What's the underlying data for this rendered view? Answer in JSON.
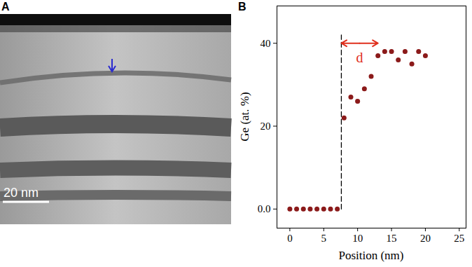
{
  "image_panel": {
    "panel_label": "A",
    "scale_bar": "20 nm"
  },
  "chart_data": {
    "type": "scatter",
    "panel_label": "B",
    "x_label": "Position (nm)",
    "y_label": "Ge (at. %)",
    "x": [
      0,
      1,
      2,
      3,
      4,
      5,
      6,
      7,
      8,
      9,
      10,
      11,
      12,
      13,
      14,
      15,
      16,
      17,
      18,
      19,
      20
    ],
    "values": [
      0,
      0,
      0,
      0,
      0,
      0,
      0,
      0,
      22,
      27,
      26,
      29,
      32,
      37,
      38,
      38,
      36,
      38,
      35,
      38,
      37
    ],
    "color": "#8b1a1a",
    "marker": "circle",
    "xlim": [
      -1.9,
      26
    ],
    "ylim": [
      -4.6,
      49
    ],
    "xticks": [
      0,
      5,
      10,
      15,
      20,
      25
    ],
    "yticks": [
      {
        "value": 0,
        "label": "0.0"
      },
      20,
      40
    ],
    "grid": false,
    "reference_line": {
      "x": 7.6,
      "y": [
        0,
        42
      ],
      "line_style": "dashed",
      "color": "#000000"
    },
    "annotations": [
      {
        "text": "d",
        "x": [
          7.6,
          13
        ],
        "y": 40,
        "text_y": 36.5,
        "color": "#e0301e"
      }
    ]
  }
}
